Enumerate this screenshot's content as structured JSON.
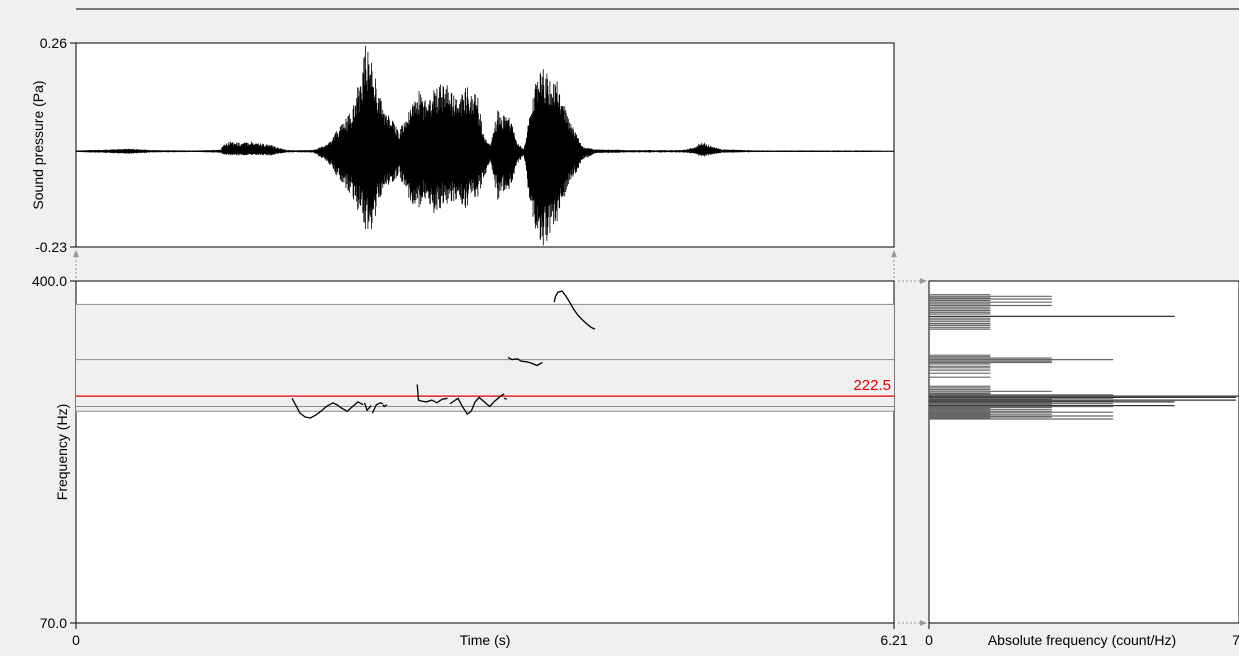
{
  "chart_data": [
    {
      "type": "line",
      "name": "waveform",
      "title": "",
      "xlabel": "",
      "ylabel": "Sound pressure (Pa)",
      "xlim": [
        0,
        6.21
      ],
      "ylim": [
        -0.23,
        0.26
      ],
      "ytick_labels": [
        "0.26",
        "-0.23"
      ],
      "envelope": {
        "t": [
          0.0,
          0.2,
          0.4,
          0.6,
          0.9,
          1.1,
          1.12,
          1.18,
          1.25,
          1.33,
          1.4,
          1.48,
          1.6,
          1.8,
          1.92,
          2.0,
          2.1,
          2.15,
          2.2,
          2.25,
          2.3,
          2.35,
          2.45,
          2.55,
          2.6,
          2.65,
          2.7,
          2.8,
          2.88,
          2.95,
          3.0,
          3.05,
          3.1,
          3.15,
          3.2,
          3.25,
          3.3,
          3.35,
          3.4,
          3.45,
          3.5,
          3.55,
          3.6,
          3.65,
          3.7,
          3.75,
          3.8,
          3.85,
          3.95,
          4.2,
          4.4,
          4.6,
          4.7,
          4.75,
          4.8,
          4.9,
          5.2,
          5.6,
          6.0,
          6.21
        ],
        "pos": [
          0.002,
          0.004,
          0.006,
          0.003,
          0.002,
          0.004,
          0.02,
          0.025,
          0.02,
          0.025,
          0.02,
          0.015,
          0.003,
          0.003,
          0.02,
          0.06,
          0.1,
          0.17,
          0.26,
          0.22,
          0.14,
          0.1,
          0.05,
          0.11,
          0.15,
          0.13,
          0.15,
          0.17,
          0.13,
          0.15,
          0.16,
          0.13,
          0.03,
          0.02,
          0.1,
          0.09,
          0.08,
          0.02,
          0.005,
          0.1,
          0.18,
          0.2,
          0.18,
          0.17,
          0.12,
          0.08,
          0.04,
          0.01,
          0.005,
          0.003,
          0.003,
          0.003,
          0.01,
          0.025,
          0.015,
          0.005,
          0.002,
          0.002,
          0.002,
          0.001
        ],
        "neg": [
          0.002,
          0.004,
          0.006,
          0.003,
          0.002,
          0.004,
          0.01,
          0.01,
          0.01,
          0.01,
          0.01,
          0.01,
          0.003,
          0.003,
          0.03,
          0.07,
          0.11,
          0.15,
          0.19,
          0.2,
          0.12,
          0.09,
          0.06,
          0.13,
          0.14,
          0.12,
          0.16,
          0.13,
          0.12,
          0.14,
          0.12,
          0.11,
          0.06,
          0.03,
          0.12,
          0.1,
          0.09,
          0.03,
          0.01,
          0.14,
          0.2,
          0.23,
          0.21,
          0.17,
          0.12,
          0.08,
          0.05,
          0.02,
          0.005,
          0.003,
          0.003,
          0.003,
          0.006,
          0.015,
          0.01,
          0.004,
          0.002,
          0.002,
          0.002,
          0.001
        ]
      }
    },
    {
      "type": "line",
      "name": "pitch",
      "title": "",
      "xlabel": "Time (s)",
      "ylabel": "Frequency (Hz)",
      "xlim": [
        0,
        6.21
      ],
      "ylim": [
        70.0,
        400.0
      ],
      "ytick_labels": [
        "400.0",
        "70.0"
      ],
      "xtick_labels": [
        "0",
        "6.21"
      ],
      "scale": "log",
      "reference_line": {
        "value": 222.5,
        "label": "222.5",
        "color": "#e00000"
      },
      "gray_lines": [
        355,
        268,
        211,
        206
      ],
      "segments": [
        {
          "t": [
            1.64,
            1.67,
            1.7,
            1.74,
            1.78,
            1.82,
            1.86,
            1.9,
            1.95,
            1.98,
            2.02,
            2.06,
            2.1,
            2.14,
            2.18
          ],
          "f": [
            220,
            212,
            204,
            200,
            199,
            202,
            206,
            211,
            215,
            213,
            209,
            206,
            211,
            216,
            213
          ]
        },
        {
          "t": [
            2.19,
            2.21,
            2.24
          ],
          "f": [
            215,
            207,
            212
          ]
        },
        {
          "t": [
            2.25,
            2.28,
            2.31,
            2.33
          ],
          "f": [
            204,
            213,
            215,
            214
          ]
        },
        {
          "t": [
            2.33,
            2.34,
            2.36
          ],
          "f": [
            213,
            211,
            213
          ]
        },
        {
          "t": [
            2.59,
            2.6,
            2.62,
            2.66,
            2.7,
            2.74,
            2.78,
            2.82
          ],
          "f": [
            236,
            218,
            217,
            216,
            218,
            215,
            219,
            220
          ]
        },
        {
          "t": [
            2.84,
            2.87,
            2.9,
            2.93,
            2.97,
            3.0,
            3.03,
            3.06,
            3.1,
            3.14,
            3.18,
            3.22,
            3.25
          ],
          "f": [
            214,
            217,
            220,
            212,
            203,
            206,
            216,
            221,
            216,
            211,
            217,
            222,
            225
          ]
        },
        {
          "t": [
            3.25,
            3.27
          ],
          "f": [
            220,
            219
          ]
        },
        {
          "t": [
            3.28,
            3.31,
            3.35,
            3.38,
            3.42,
            3.46,
            3.5,
            3.54
          ],
          "f": [
            271,
            268,
            269,
            266,
            265,
            263,
            260,
            264
          ]
        },
        {
          "t": [
            3.63,
            3.64,
            3.66,
            3.69,
            3.72,
            3.75,
            3.78,
            3.81,
            3.84,
            3.87,
            3.91,
            3.94
          ],
          "f": [
            359,
            370,
            378,
            380,
            370,
            358,
            346,
            336,
            329,
            323,
            316,
            313
          ]
        }
      ]
    },
    {
      "type": "bar",
      "name": "pitch histogram",
      "title": "",
      "xlabel": "Absolute frequency (count/Hz)",
      "ylabel": "",
      "xlim": [
        0,
        7
      ],
      "xtick_labels": [
        "0",
        "7"
      ],
      "ylim": [
        70.0,
        400.0
      ],
      "bins_hz": [
        373,
        370,
        367,
        365,
        362,
        359,
        356,
        353,
        350,
        347,
        344,
        341,
        338,
        334,
        331,
        328,
        325,
        322,
        319,
        316,
        313,
        274,
        272,
        270,
        268,
        266,
        264,
        262,
        259,
        257,
        254,
        250,
        245,
        234,
        232,
        230,
        228,
        226,
        225,
        224,
        222.5,
        221,
        220,
        219,
        218,
        217,
        216,
        215,
        214,
        213,
        212,
        211,
        210,
        209,
        208,
        207,
        206,
        205,
        204,
        203,
        202,
        201,
        200,
        199,
        198
      ],
      "counts": [
        1.4,
        2.8,
        1.4,
        2.8,
        1.4,
        2.8,
        1.4,
        2.8,
        1.4,
        1.4,
        1.4,
        1.4,
        1.4,
        5.6,
        1.4,
        1.4,
        1.4,
        1.4,
        1.4,
        1.4,
        1.4,
        1.4,
        1.4,
        2.8,
        4.2,
        2.8,
        2.8,
        1.4,
        1.4,
        1.4,
        1.4,
        1.4,
        1.4,
        1.4,
        1.4,
        1.4,
        2.8,
        1.4,
        1.4,
        4.2,
        9.8,
        7.0,
        4.2,
        2.8,
        7.0,
        4.2,
        5.6,
        2.8,
        4.2,
        2.8,
        5.6,
        4.2,
        2.8,
        1.4,
        2.8,
        1.4,
        2.8,
        4.2,
        1.4,
        2.8,
        1.4,
        4.2,
        2.8,
        1.4,
        4.2
      ]
    }
  ]
}
